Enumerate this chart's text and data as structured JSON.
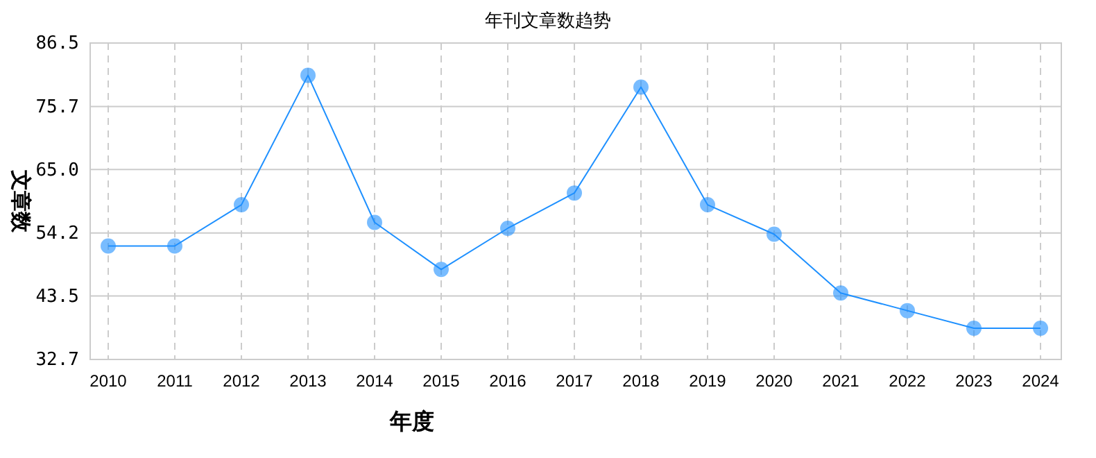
{
  "chart_data": {
    "type": "line",
    "title": "年刊文章数趋势",
    "xlabel": "年度",
    "ylabel": "文章数",
    "categories": [
      "2010",
      "2011",
      "2012",
      "2013",
      "2014",
      "2015",
      "2016",
      "2017",
      "2018",
      "2019",
      "2020",
      "2021",
      "2022",
      "2023",
      "2024"
    ],
    "series": [
      {
        "color": "#1e90ff",
        "values": [
          52,
          52,
          59,
          81,
          56,
          48,
          55,
          61,
          79,
          59,
          54,
          44,
          41,
          38,
          38
        ]
      }
    ],
    "ylim": [
      32.7,
      86.5
    ],
    "yticks": [
      {
        "value": 32.7,
        "label": "32.7"
      },
      {
        "value": 43.5,
        "label": "43.5"
      },
      {
        "value": 54.2,
        "label": "54.2"
      },
      {
        "value": 65.0,
        "label": "65.0"
      },
      {
        "value": 75.7,
        "label": "75.7"
      },
      {
        "value": 86.5,
        "label": "86.5"
      }
    ],
    "grid": true,
    "marker": "circle",
    "line_style": "solid"
  }
}
